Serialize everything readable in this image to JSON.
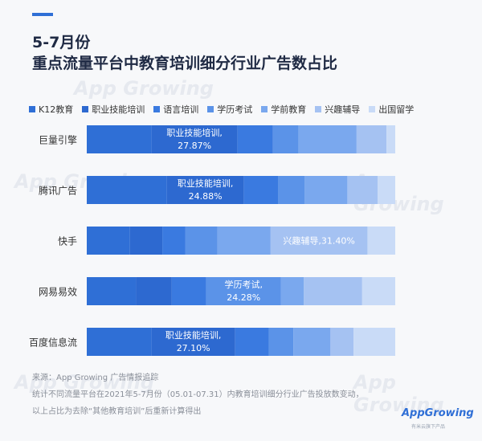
{
  "header": {
    "title_line1": "5-7月份",
    "title_line2": "重点流量平台中教育培训细分行业广告数占比"
  },
  "watermark_text": "App Growing",
  "chart_data": {
    "type": "bar",
    "stacked": true,
    "orientation": "horizontal",
    "xlim": [
      0,
      100
    ],
    "legend_position": "top",
    "categories": [
      "巨量引擎",
      "腾讯广告",
      "快手",
      "网易易效",
      "百度信息流"
    ],
    "series": [
      {
        "name": "K12教育",
        "color": "#2f6fd6",
        "values": [
          21.0,
          26.0,
          14.0,
          16.0,
          21.0
        ]
      },
      {
        "name": "职业技能培训",
        "color": "#2d69d0",
        "values": [
          27.87,
          24.88,
          10.5,
          11.5,
          27.1
        ]
      },
      {
        "name": "语言培训",
        "color": "#3a7ae0",
        "values": [
          11.5,
          11.2,
          7.5,
          11.2,
          10.9
        ]
      },
      {
        "name": "学历考试",
        "color": "#5b93e8",
        "values": [
          8.3,
          8.5,
          10.4,
          24.28,
          8.0
        ]
      },
      {
        "name": "学前教育",
        "color": "#7aa8ee",
        "values": [
          18.8,
          13.9,
          17.2,
          7.4,
          12.0
        ]
      },
      {
        "name": "兴趣辅导",
        "color": "#a5c2f2",
        "values": [
          9.7,
          9.8,
          31.4,
          18.9,
          7.5
        ]
      },
      {
        "name": "出国留学",
        "color": "#c9dbf7",
        "values": [
          2.83,
          5.72,
          9.0,
          10.72,
          13.5
        ]
      }
    ],
    "annotations": [
      {
        "category_index": 0,
        "series_index": 1,
        "label": "职业技能培训,",
        "value_text": "27.87%"
      },
      {
        "category_index": 1,
        "series_index": 1,
        "label": "职业技能培训,",
        "value_text": "24.88%"
      },
      {
        "category_index": 2,
        "series_index": 5,
        "label": "兴趣辅导,",
        "value_text": "31.40%"
      },
      {
        "category_index": 3,
        "series_index": 3,
        "label": "学历考试,",
        "value_text": "24.28%"
      },
      {
        "category_index": 4,
        "series_index": 1,
        "label": "职业技能培训,",
        "value_text": "27.10%"
      }
    ]
  },
  "footer": {
    "source": "来源：App Growing 广告情报追踪",
    "note1": "统计不同流量平台在2021年5-7月份（05.01-07.31）内教育培训细分行业广告投放数变动，",
    "note2": "以上占比为去除“其他教育培训”后重新计算得出"
  },
  "logo": {
    "name": "AppGrowing",
    "tagline": "有米云旗下产品"
  }
}
